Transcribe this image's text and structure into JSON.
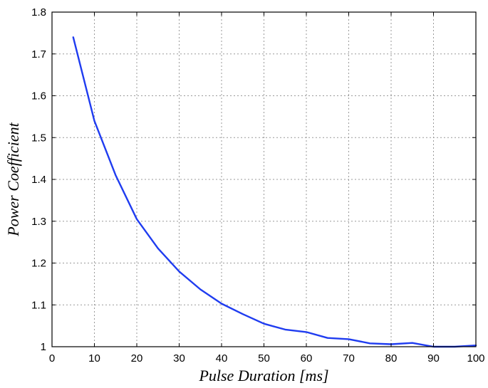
{
  "chart_data": {
    "type": "line",
    "title": "",
    "xlabel": "Pulse Duration [ms]",
    "ylabel": "Power Coefficient",
    "xlim": [
      0,
      100
    ],
    "ylim": [
      1,
      1.8
    ],
    "xticks": [
      0,
      10,
      20,
      30,
      40,
      50,
      60,
      70,
      80,
      90,
      100
    ],
    "xtick_labels": [
      "0",
      "10",
      "20",
      "30",
      "40",
      "50",
      "60",
      "70",
      "80",
      "90",
      "100"
    ],
    "yticks": [
      1,
      1.1,
      1.2,
      1.3,
      1.4,
      1.5,
      1.6,
      1.7,
      1.8
    ],
    "ytick_labels": [
      "1",
      "1.1",
      "1.2",
      "1.3",
      "1.4",
      "1.5",
      "1.6",
      "1.7",
      "1.8"
    ],
    "grid": true,
    "colors": {
      "series": "#1f3cf0",
      "grid": "#9a9a9a",
      "frame": "#000000"
    },
    "series": [
      {
        "x": [
          5,
          10,
          15,
          20,
          25,
          30,
          35,
          40,
          45,
          50,
          55,
          60,
          65,
          70,
          75,
          80,
          85,
          90,
          95,
          100
        ],
        "y": [
          1.74,
          1.54,
          1.41,
          1.305,
          1.235,
          1.18,
          1.137,
          1.103,
          1.078,
          1.055,
          1.041,
          1.035,
          1.021,
          1.018,
          1.008,
          1.006,
          1.009,
          1.0,
          1.0,
          1.003
        ]
      }
    ]
  }
}
